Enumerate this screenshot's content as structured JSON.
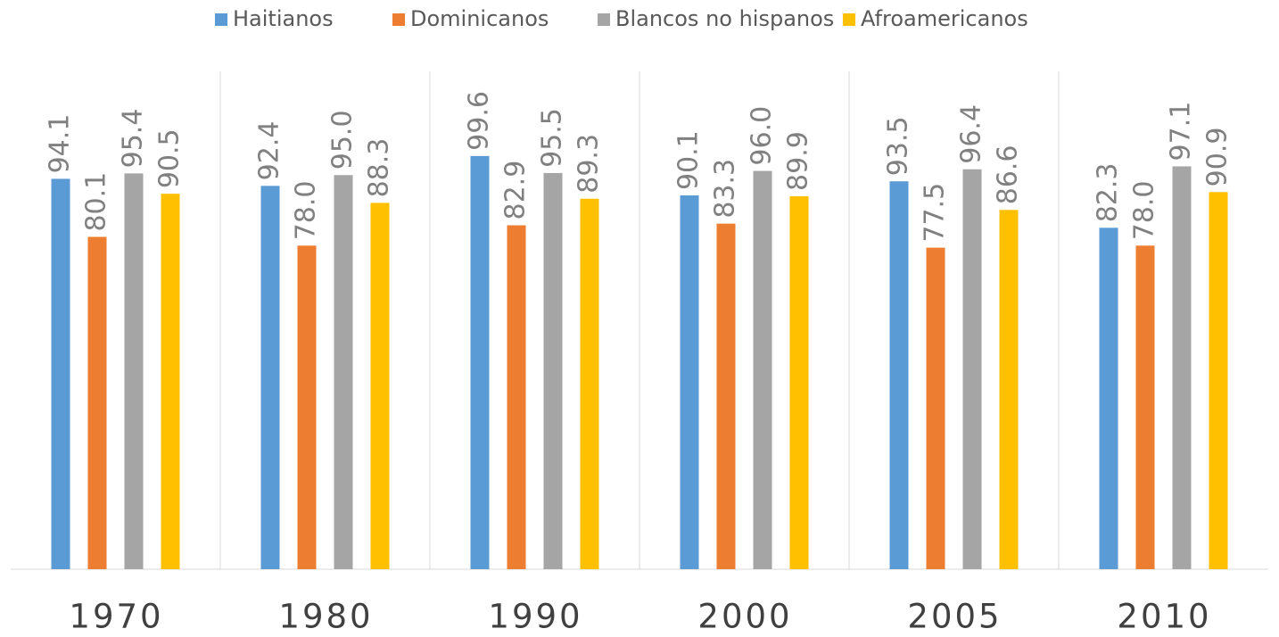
{
  "chart_data": {
    "type": "bar",
    "categories": [
      "1970",
      "1980",
      "1990",
      "2000",
      "2005",
      "2010"
    ],
    "series": [
      {
        "name": "Haitianos",
        "color": "#5b9bd5",
        "values": [
          94.1,
          92.4,
          99.6,
          90.1,
          93.5,
          82.3
        ]
      },
      {
        "name": "Dominicanos",
        "color": "#ed7d31",
        "values": [
          80.1,
          78.0,
          82.9,
          83.3,
          77.5,
          78.0
        ],
        "value_labels": [
          "80.1",
          "78.0",
          "82.9",
          "83.3",
          "77.5",
          "78.0"
        ]
      },
      {
        "name": "Blancos no hispanos",
        "color": "#a5a5a5",
        "values": [
          95.4,
          95.0,
          95.5,
          96.0,
          96.4,
          97.1
        ],
        "value_labels": [
          "95.4",
          "95.0",
          "95.5",
          "96.0",
          "96.4",
          "97.1"
        ]
      },
      {
        "name": "Afroamericanos",
        "color": "#ffc000",
        "values": [
          90.5,
          88.3,
          89.3,
          89.9,
          86.6,
          90.9
        ]
      }
    ],
    "ylim": [
      0,
      120
    ],
    "legend": "top"
  }
}
